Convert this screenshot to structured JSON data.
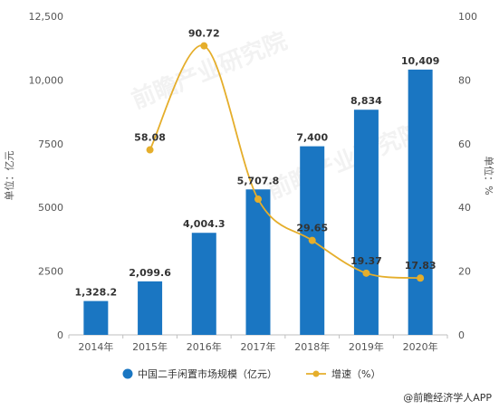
{
  "chart_data": {
    "type": "bar",
    "categories": [
      "2014年",
      "2015年",
      "2016年",
      "2017年",
      "2018年",
      "2019年",
      "2020年"
    ],
    "series": [
      {
        "name": "中国二手闲置市场规模（亿元）",
        "type": "bar",
        "axis": "left",
        "color": "#1a76c2",
        "values": [
          1328.2,
          2099.6,
          4004.3,
          5707.8,
          7400,
          8834,
          10409
        ],
        "labels": [
          "1,328.2",
          "2,099.6",
          "4,004.3",
          "5,707.8",
          "7,400",
          "8,834",
          "10,409"
        ]
      },
      {
        "name": "增速（%）",
        "type": "line",
        "axis": "right",
        "color": "#e5ae2b",
        "values": [
          null,
          58.08,
          90.72,
          42.6,
          29.65,
          19.37,
          17.83
        ],
        "labels": [
          "",
          "58.08",
          "90.72",
          "",
          "29.65",
          "19.37",
          "17.83"
        ]
      }
    ],
    "y_left": {
      "label": "单位：亿元",
      "range": [
        0,
        12500
      ],
      "ticks": [
        "0",
        "2500",
        "5000",
        "7500",
        "10,000",
        "12,500"
      ],
      "tick_values": [
        0,
        2500,
        5000,
        7500,
        10000,
        12500
      ]
    },
    "y_right": {
      "label": "单位：%",
      "range": [
        0,
        100
      ],
      "ticks": [
        "0",
        "20",
        "40",
        "60",
        "80",
        "100"
      ],
      "tick_values": [
        0,
        20,
        40,
        60,
        80,
        100
      ]
    },
    "grid": false,
    "legend_position": "bottom"
  },
  "footer": {
    "credit": "@前瞻经济学人APP"
  },
  "watermark": {
    "text": "前瞻产业研究院"
  }
}
